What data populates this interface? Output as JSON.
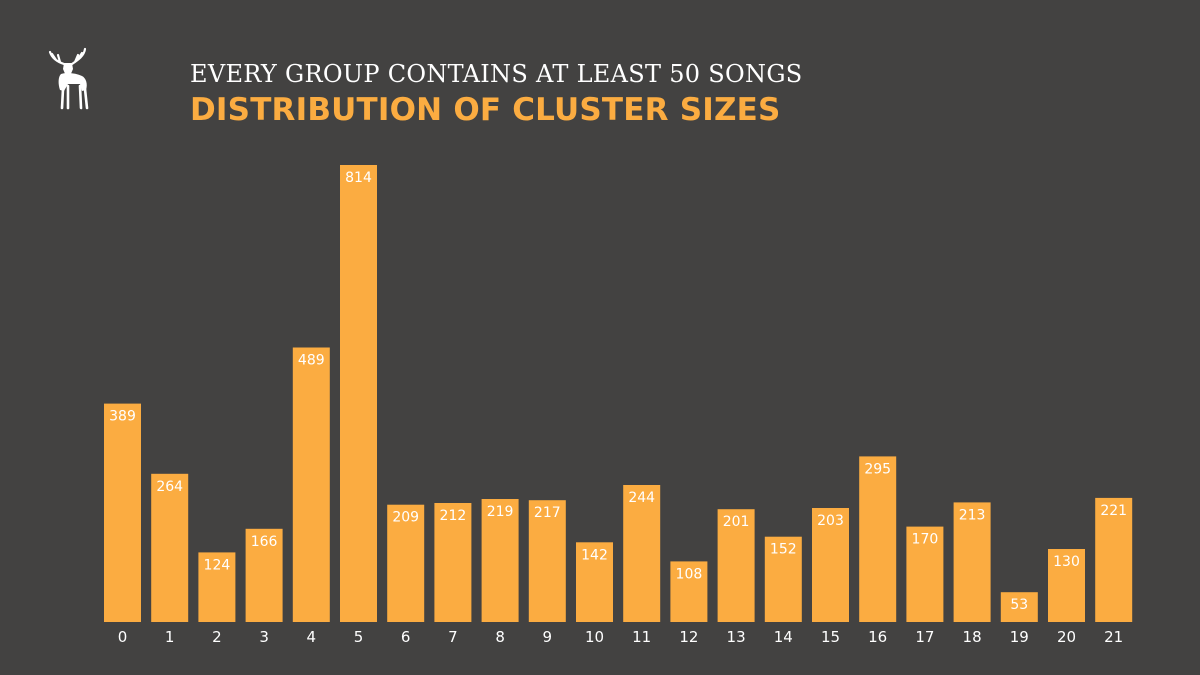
{
  "header": {
    "subtitle": "EVERY GROUP CONTAINS AT LEAST 50 SONGS",
    "title": "DISTRIBUTION OF CLUSTER SIZES"
  },
  "logo": {
    "icon": "moose-logo-icon"
  },
  "colors": {
    "background": "#434241",
    "bar": "#fbac41",
    "title": "#fbac41",
    "text": "#ffffff"
  },
  "chart_data": {
    "type": "bar",
    "title": "DISTRIBUTION OF CLUSTER SIZES",
    "subtitle": "EVERY GROUP CONTAINS AT LEAST 50 SONGS",
    "categories": [
      "0",
      "1",
      "2",
      "3",
      "4",
      "5",
      "6",
      "7",
      "8",
      "9",
      "10",
      "11",
      "12",
      "13",
      "14",
      "15",
      "16",
      "17",
      "18",
      "19",
      "20",
      "21"
    ],
    "values": [
      389,
      264,
      124,
      166,
      489,
      814,
      209,
      212,
      219,
      217,
      142,
      244,
      108,
      201,
      152,
      203,
      295,
      170,
      213,
      53,
      130,
      221
    ],
    "data_labels": true,
    "grid": false,
    "ylim": [
      0,
      814
    ]
  }
}
